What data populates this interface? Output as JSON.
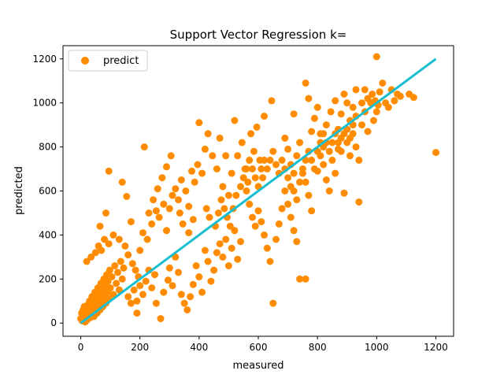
{
  "chart_data": {
    "type": "scatter",
    "title": "Support Vector Regression k=",
    "xlabel": "measured",
    "ylabel": "predicted",
    "xlim": [
      -60,
      1260
    ],
    "ylim": [
      -60,
      1260
    ],
    "xticks": [
      0,
      200,
      400,
      600,
      800,
      1000,
      1200
    ],
    "yticks": [
      0,
      200,
      400,
      600,
      800,
      1000,
      1200
    ],
    "grid": false,
    "legend": {
      "position": "top-left",
      "entries": [
        {
          "label": "predict",
          "marker": "circle",
          "color": "#ff8c00"
        }
      ]
    },
    "series": [
      {
        "name": "predict",
        "kind": "scatter",
        "color": "#ff8c00",
        "points": [
          [
            0,
            20
          ],
          [
            3,
            45
          ],
          [
            5,
            10
          ],
          [
            8,
            60
          ],
          [
            10,
            30
          ],
          [
            12,
            75
          ],
          [
            15,
            5
          ],
          [
            18,
            40
          ],
          [
            20,
            55
          ],
          [
            22,
            15
          ],
          [
            25,
            85
          ],
          [
            28,
            35
          ],
          [
            30,
            100
          ],
          [
            33,
            25
          ],
          [
            35,
            65
          ],
          [
            38,
            120
          ],
          [
            40,
            50
          ],
          [
            42,
            90
          ],
          [
            45,
            30
          ],
          [
            48,
            140
          ],
          [
            50,
            70
          ],
          [
            52,
            110
          ],
          [
            55,
            45
          ],
          [
            58,
            160
          ],
          [
            60,
            85
          ],
          [
            62,
            130
          ],
          [
            65,
            60
          ],
          [
            68,
            180
          ],
          [
            70,
            100
          ],
          [
            72,
            150
          ],
          [
            75,
            75
          ],
          [
            78,
            200
          ],
          [
            80,
            120
          ],
          [
            82,
            170
          ],
          [
            85,
            90
          ],
          [
            88,
            220
          ],
          [
            90,
            140
          ],
          [
            92,
            190
          ],
          [
            95,
            110
          ],
          [
            98,
            240
          ],
          [
            100,
            160
          ],
          [
            105,
            210
          ],
          [
            110,
            130
          ],
          [
            115,
            260
          ],
          [
            120,
            180
          ],
          [
            125,
            230
          ],
          [
            130,
            150
          ],
          [
            135,
            280
          ],
          [
            140,
            200
          ],
          [
            145,
            250
          ],
          [
            20,
            280
          ],
          [
            35,
            300
          ],
          [
            50,
            320
          ],
          [
            60,
            350
          ],
          [
            70,
            330
          ],
          [
            80,
            380
          ],
          [
            95,
            360
          ],
          [
            110,
            400
          ],
          [
            65,
            440
          ],
          [
            85,
            500
          ],
          [
            95,
            690
          ],
          [
            140,
            640
          ],
          [
            155,
            575
          ],
          [
            170,
            460
          ],
          [
            130,
            380
          ],
          [
            150,
            350
          ],
          [
            160,
            310
          ],
          [
            175,
            270
          ],
          [
            185,
            240
          ],
          [
            195,
            210
          ],
          [
            160,
            120
          ],
          [
            170,
            90
          ],
          [
            180,
            150
          ],
          [
            190,
            100
          ],
          [
            200,
            170
          ],
          [
            210,
            130
          ],
          [
            220,
            190
          ],
          [
            230,
            240
          ],
          [
            240,
            160
          ],
          [
            250,
            220
          ],
          [
            190,
            45
          ],
          [
            270,
            20
          ],
          [
            255,
            90
          ],
          [
            280,
            140
          ],
          [
            295,
            195
          ],
          [
            300,
            250
          ],
          [
            310,
            170
          ],
          [
            320,
            300
          ],
          [
            330,
            230
          ],
          [
            340,
            130
          ],
          [
            350,
            90
          ],
          [
            360,
            60
          ],
          [
            370,
            120
          ],
          [
            380,
            175
          ],
          [
            390,
            260
          ],
          [
            400,
            210
          ],
          [
            410,
            140
          ],
          [
            420,
            330
          ],
          [
            430,
            280
          ],
          [
            440,
            190
          ],
          [
            450,
            240
          ],
          [
            460,
            320
          ],
          [
            470,
            360
          ],
          [
            480,
            300
          ],
          [
            490,
            380
          ],
          [
            500,
            260
          ],
          [
            510,
            340
          ],
          [
            520,
            420
          ],
          [
            530,
            290
          ],
          [
            540,
            370
          ],
          [
            200,
            330
          ],
          [
            210,
            410
          ],
          [
            225,
            380
          ],
          [
            240,
            450
          ],
          [
            255,
            510
          ],
          [
            265,
            480
          ],
          [
            280,
            540
          ],
          [
            290,
            420
          ],
          [
            300,
            520
          ],
          [
            310,
            580
          ],
          [
            215,
            800
          ],
          [
            320,
            610
          ],
          [
            330,
            560
          ],
          [
            340,
            650
          ],
          [
            355,
            600
          ],
          [
            365,
            530
          ],
          [
            375,
            690
          ],
          [
            385,
            640
          ],
          [
            395,
            720
          ],
          [
            410,
            680
          ],
          [
            400,
            910
          ],
          [
            420,
            790
          ],
          [
            430,
            860
          ],
          [
            445,
            760
          ],
          [
            460,
            700
          ],
          [
            470,
            840
          ],
          [
            480,
            620
          ],
          [
            490,
            760
          ],
          [
            500,
            580
          ],
          [
            510,
            680
          ],
          [
            520,
            920
          ],
          [
            530,
            760
          ],
          [
            545,
            820
          ],
          [
            555,
            700
          ],
          [
            565,
            640
          ],
          [
            575,
            860
          ],
          [
            585,
            780
          ],
          [
            595,
            890
          ],
          [
            605,
            740
          ],
          [
            615,
            660
          ],
          [
            560,
            600
          ],
          [
            570,
            540
          ],
          [
            580,
            480
          ],
          [
            590,
            440
          ],
          [
            600,
            510
          ],
          [
            610,
            460
          ],
          [
            620,
            400
          ],
          [
            630,
            340
          ],
          [
            640,
            280
          ],
          [
            650,
            90
          ],
          [
            660,
            380
          ],
          [
            670,
            450
          ],
          [
            680,
            520
          ],
          [
            690,
            600
          ],
          [
            700,
            540
          ],
          [
            710,
            480
          ],
          [
            720,
            420
          ],
          [
            730,
            370
          ],
          [
            740,
            200
          ],
          [
            760,
            200
          ],
          [
            690,
            840
          ],
          [
            700,
            790
          ],
          [
            710,
            720
          ],
          [
            720,
            680
          ],
          [
            730,
            760
          ],
          [
            740,
            820
          ],
          [
            750,
            700
          ],
          [
            760,
            640
          ],
          [
            770,
            580
          ],
          [
            780,
            510
          ],
          [
            620,
            940
          ],
          [
            645,
            1010
          ],
          [
            720,
            950
          ],
          [
            760,
            1090
          ],
          [
            770,
            1020
          ],
          [
            780,
            870
          ],
          [
            790,
            930
          ],
          [
            800,
            980
          ],
          [
            810,
            860
          ],
          [
            820,
            800
          ],
          [
            800,
            690
          ],
          [
            810,
            760
          ],
          [
            820,
            720
          ],
          [
            830,
            650
          ],
          [
            840,
            600
          ],
          [
            850,
            740
          ],
          [
            860,
            680
          ],
          [
            870,
            790
          ],
          [
            880,
            840
          ],
          [
            890,
            590
          ],
          [
            830,
            900
          ],
          [
            845,
            960
          ],
          [
            860,
            1010
          ],
          [
            870,
            880
          ],
          [
            880,
            950
          ],
          [
            890,
            1040
          ],
          [
            900,
            1000
          ],
          [
            910,
            920
          ],
          [
            920,
            980
          ],
          [
            930,
            1060
          ],
          [
            900,
            820
          ],
          [
            910,
            760
          ],
          [
            920,
            860
          ],
          [
            930,
            800
          ],
          [
            940,
            740
          ],
          [
            950,
            900
          ],
          [
            960,
            960
          ],
          [
            970,
            870
          ],
          [
            980,
            1000
          ],
          [
            990,
            920
          ],
          [
            940,
            550
          ],
          [
            1000,
            1210
          ],
          [
            1010,
            1050
          ],
          [
            1020,
            1090
          ],
          [
            1030,
            1000
          ],
          [
            1040,
            980
          ],
          [
            1050,
            1060
          ],
          [
            1080,
            1030
          ],
          [
            1110,
            1040
          ],
          [
            1125,
            1025
          ],
          [
            1200,
            775
          ],
          [
            985,
            1040
          ],
          [
            970,
            1020
          ],
          [
            960,
            1060
          ],
          [
            950,
            1000
          ],
          [
            1000,
            960
          ],
          [
            995,
            1010
          ],
          [
            1060,
            1010
          ],
          [
            1070,
            1040
          ],
          [
            1005,
            990
          ],
          [
            230,
            500
          ],
          [
            245,
            560
          ],
          [
            260,
            610
          ],
          [
            275,
            660
          ],
          [
            290,
            710
          ],
          [
            305,
            760
          ],
          [
            335,
            500
          ],
          [
            345,
            450
          ],
          [
            365,
            410
          ],
          [
            380,
            470
          ],
          [
            425,
            520
          ],
          [
            435,
            480
          ],
          [
            455,
            440
          ],
          [
            465,
            500
          ],
          [
            475,
            560
          ],
          [
            485,
            520
          ],
          [
            495,
            480
          ],
          [
            505,
            440
          ],
          [
            515,
            520
          ],
          [
            525,
            580
          ],
          [
            540,
            620
          ],
          [
            550,
            660
          ],
          [
            560,
            700
          ],
          [
            570,
            740
          ],
          [
            580,
            700
          ],
          [
            590,
            660
          ],
          [
            600,
            620
          ],
          [
            610,
            700
          ],
          [
            620,
            740
          ],
          [
            630,
            700
          ],
          [
            640,
            740
          ],
          [
            650,
            780
          ],
          [
            660,
            720
          ],
          [
            670,
            680
          ],
          [
            680,
            740
          ],
          [
            690,
            700
          ],
          [
            700,
            660
          ],
          [
            710,
            620
          ],
          [
            720,
            600
          ],
          [
            730,
            560
          ],
          [
            740,
            640
          ],
          [
            750,
            680
          ],
          [
            760,
            740
          ],
          [
            770,
            780
          ],
          [
            780,
            740
          ],
          [
            790,
            700
          ],
          [
            800,
            780
          ],
          [
            810,
            820
          ],
          [
            820,
            860
          ],
          [
            830,
            820
          ],
          [
            840,
            780
          ],
          [
            850,
            820
          ],
          [
            860,
            860
          ],
          [
            870,
            820
          ],
          [
            880,
            780
          ],
          [
            890,
            860
          ],
          [
            900,
            880
          ],
          [
            910,
            840
          ],
          [
            920,
            900
          ],
          [
            930,
            940
          ]
        ]
      },
      {
        "name": "",
        "kind": "line",
        "color": "#17becf",
        "x": [
          0,
          1200
        ],
        "y": [
          0,
          1200
        ]
      }
    ]
  }
}
